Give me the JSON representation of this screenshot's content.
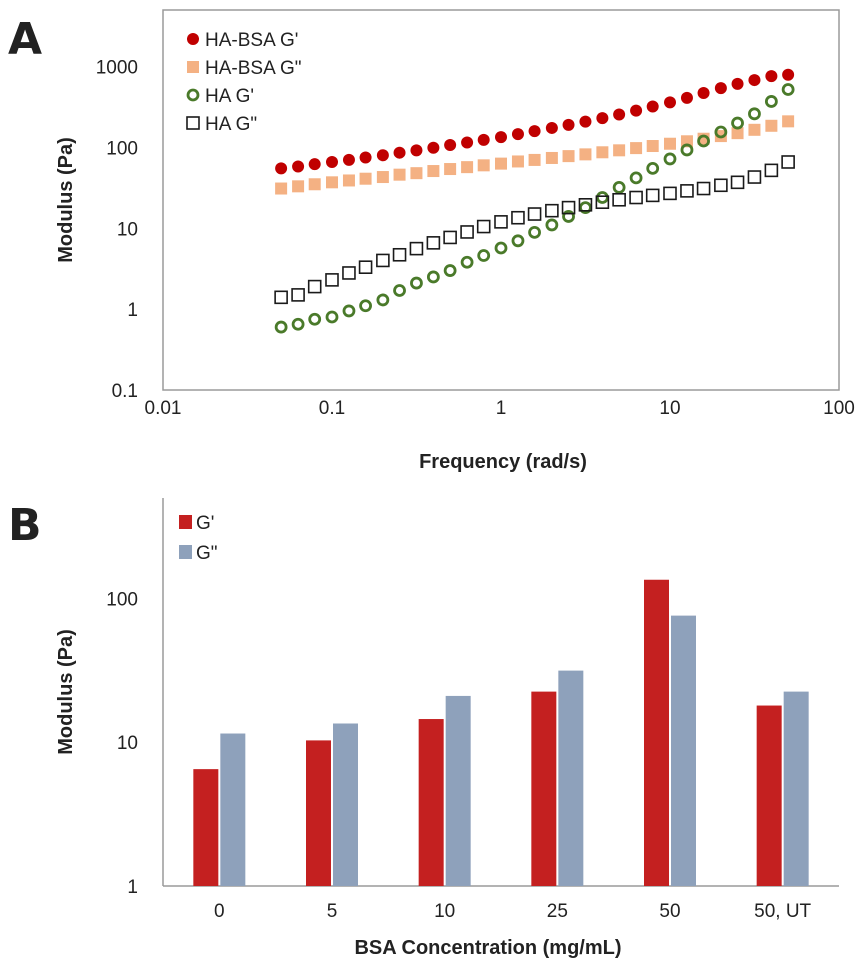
{
  "chart_data": [
    {
      "panel": "A",
      "type": "scatter",
      "xlabel": "Frequency (rad/s)",
      "ylabel": "Modulus (Pa)",
      "xscale": "log",
      "yscale": "log",
      "xlim": [
        0.01,
        100
      ],
      "ylim": [
        0.1,
        5000
      ],
      "xticks": [
        "0.01",
        "0.1",
        "1",
        "10",
        "100"
      ],
      "yticks": [
        "0.1",
        "1",
        "10",
        "100",
        "1000"
      ],
      "grid": false,
      "legend_position": "top-left",
      "x": [
        0.05,
        0.063,
        0.079,
        0.1,
        0.126,
        0.158,
        0.2,
        0.251,
        0.316,
        0.398,
        0.5,
        0.63,
        0.79,
        1.0,
        1.26,
        1.58,
        2.0,
        2.51,
        3.16,
        3.98,
        5.0,
        6.3,
        7.9,
        10.0,
        12.6,
        15.8,
        20.0,
        25.1,
        31.6,
        39.8,
        50.0
      ],
      "series": [
        {
          "name": "HA-BSA G'",
          "marker": "filled-circle",
          "color": "#c00000",
          "values": [
            55,
            58,
            62,
            66,
            70,
            75,
            80,
            86,
            92,
            99,
            107,
            115,
            124,
            134,
            146,
            159,
            174,
            190,
            208,
            230,
            255,
            285,
            320,
            360,
            410,
            470,
            540,
            610,
            680,
            760,
            790
          ]
        },
        {
          "name": "HA-BSA G\"",
          "marker": "filled-square",
          "color": "#f4b183",
          "values": [
            31,
            33,
            35,
            37,
            39,
            41,
            43,
            46,
            48,
            51,
            54,
            57,
            60,
            63,
            67,
            70,
            74,
            78,
            82,
            87,
            92,
            98,
            104,
            111,
            119,
            128,
            138,
            150,
            165,
            185,
            210
          ]
        },
        {
          "name": "HA G'",
          "marker": "open-circle",
          "color": "#4a7a2a",
          "values": [
            0.6,
            0.65,
            0.75,
            0.8,
            0.95,
            1.1,
            1.3,
            1.7,
            2.1,
            2.5,
            3.0,
            3.8,
            4.6,
            5.7,
            7.0,
            8.9,
            11,
            14,
            18,
            24,
            32,
            42,
            55,
            72,
            93,
            120,
            155,
            200,
            260,
            370,
            520
          ]
        },
        {
          "name": "HA G\"",
          "marker": "open-square",
          "color": "#1a1a1a",
          "values": [
            1.4,
            1.5,
            1.9,
            2.3,
            2.8,
            3.3,
            4.0,
            4.7,
            5.6,
            6.6,
            7.7,
            9.0,
            10.5,
            12,
            13.5,
            15,
            16.5,
            18,
            19.5,
            21,
            22.5,
            24,
            25.5,
            27,
            29,
            31,
            34,
            37,
            43,
            52,
            66
          ]
        }
      ]
    },
    {
      "panel": "B",
      "type": "bar",
      "xlabel": "BSA Concentration (mg/mL)",
      "ylabel": "Modulus (Pa)",
      "yscale": "log",
      "ylim": [
        1,
        500
      ],
      "yticks": [
        "1",
        "10",
        "100"
      ],
      "grid": false,
      "legend_position": "top-left",
      "categories": [
        "0",
        "5",
        "10",
        "25",
        "50",
        "50, UT"
      ],
      "series": [
        {
          "name": "G'",
          "color": "#c42020",
          "values": [
            6.5,
            10.3,
            14.5,
            22.5,
            135,
            18
          ]
        },
        {
          "name": "G\"",
          "color": "#8ea1bb",
          "values": [
            11.5,
            13.5,
            21,
            31.5,
            76,
            22.5
          ]
        }
      ]
    }
  ]
}
